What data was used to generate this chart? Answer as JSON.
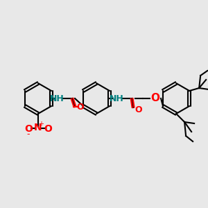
{
  "bg_color": "#e8e8e8",
  "bond_color": "#000000",
  "bond_width": 1.5,
  "atom_colors": {
    "C": "#000000",
    "H": "#000000",
    "N": "#0000cd",
    "O": "#ff0000",
    "NH": "#008080"
  },
  "font_size": 9,
  "fig_size": [
    3.0,
    3.0
  ],
  "dpi": 100
}
